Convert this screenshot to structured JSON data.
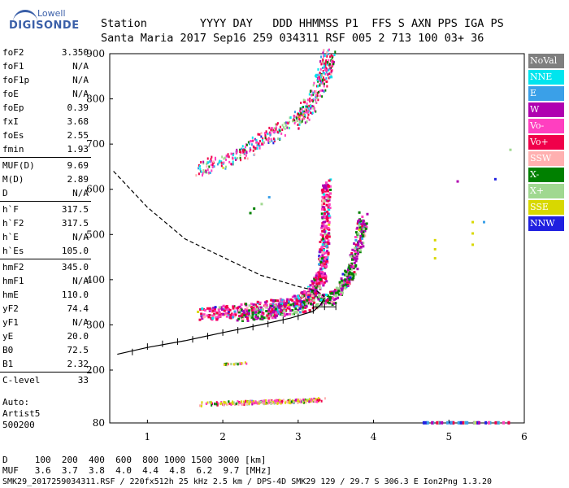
{
  "logo": {
    "line1": "Lowell",
    "line2": "DIGISONDE"
  },
  "header": {
    "labels": [
      "Station",
      "YYYY",
      "DAY",
      "DDD",
      "HHMMSS",
      "P1",
      "FFS",
      "S",
      "AXN",
      "PPS",
      "IGA",
      "PS"
    ],
    "values": [
      "Santa Maria",
      "2017",
      "Sep16",
      "259",
      "034311",
      "RSF",
      "005",
      "2",
      "713",
      "100",
      "03+",
      "36"
    ]
  },
  "params": [
    {
      "k": "foF2",
      "v": "3.350"
    },
    {
      "k": "foF1",
      "v": "N/A"
    },
    {
      "k": "foF1p",
      "v": "N/A"
    },
    {
      "k": "foE",
      "v": "N/A"
    },
    {
      "k": "foEp",
      "v": "0.39"
    },
    {
      "k": "fxI",
      "v": "3.68"
    },
    {
      "k": "foEs",
      "v": "2.55"
    },
    {
      "k": "fmin",
      "v": "1.93"
    },
    {
      "k": "MUF(D)",
      "v": "9.69"
    },
    {
      "k": "M(D)",
      "v": "2.89"
    },
    {
      "k": "D",
      "v": "N/A"
    },
    {
      "k": "h`F",
      "v": "317.5"
    },
    {
      "k": "h`F2",
      "v": "317.5"
    },
    {
      "k": "h`E",
      "v": "N/A"
    },
    {
      "k": "h`Es",
      "v": "105.0"
    },
    {
      "k": "hmF2",
      "v": "345.0"
    },
    {
      "k": "hmF1",
      "v": "N/A"
    },
    {
      "k": "hmE",
      "v": "110.0"
    },
    {
      "k": "yF2",
      "v": "74.4"
    },
    {
      "k": "yF1",
      "v": "N/A"
    },
    {
      "k": "yE",
      "v": "20.0"
    },
    {
      "k": "B0",
      "v": "72.5"
    },
    {
      "k": "B1",
      "v": "2.32"
    },
    {
      "k": "C-level",
      "v": "33"
    }
  ],
  "auto": {
    "line1": "Auto:",
    "line2": "Artist5",
    "line3": "500200"
  },
  "legend": [
    {
      "label": "NoVal",
      "color": "#7f7f7f"
    },
    {
      "label": "NNE",
      "color": "#00e5ee"
    },
    {
      "label": "E",
      "color": "#3aa0e8"
    },
    {
      "label": "W",
      "color": "#b000b0"
    },
    {
      "label": "Vo-",
      "color": "#ff3fc0"
    },
    {
      "label": "Vo+",
      "color": "#f0004a"
    },
    {
      "label": "SSW",
      "color": "#ffb0b0"
    },
    {
      "label": "X-",
      "color": "#008000"
    },
    {
      "label": "X+",
      "color": "#a0d890"
    },
    {
      "label": "SSE",
      "color": "#d8d800"
    },
    {
      "label": "NNW",
      "color": "#2020e0"
    }
  ],
  "bottom": {
    "line1": "D     100  200  400  600  800 1000 1500 3000 [km]",
    "line2": "MUF   3.6  3.7  3.8  4.0  4.4  4.8  6.2  9.7 [MHz]"
  },
  "footer": "SMK29_2017259034311.RSF / 220fx512h 25 kHz 2.5 km / DPS-4D SMK29 129 / 29.7 S 306.3 E Ion2Png 1.3.20",
  "chart_data": {
    "type": "scatter",
    "xlabel": "",
    "ylabel": "",
    "xlim": [
      0.5,
      6.0
    ],
    "ylim": [
      80,
      900
    ],
    "x_ticks": [
      1,
      2,
      3,
      4,
      5,
      6
    ],
    "y_ticks": [
      80,
      200,
      300,
      400,
      500,
      600,
      700,
      800,
      900
    ],
    "series": [
      {
        "name": "NNE",
        "color": "#00e5ee"
      },
      {
        "name": "E",
        "color": "#3aa0e8"
      },
      {
        "name": "W",
        "color": "#b000b0"
      },
      {
        "name": "Vo-",
        "color": "#ff3fc0"
      },
      {
        "name": "Vo+",
        "color": "#f0004a"
      },
      {
        "name": "SSW",
        "color": "#ffb0b0"
      },
      {
        "name": "X-",
        "color": "#008000"
      },
      {
        "name": "X+",
        "color": "#a0d890"
      },
      {
        "name": "SSE",
        "color": "#d8d800"
      },
      {
        "name": "NNW",
        "color": "#2020e0"
      }
    ],
    "trace_F2_o": [
      [
        1.7,
        325
      ],
      [
        2.0,
        330
      ],
      [
        2.5,
        340
      ],
      [
        2.9,
        350
      ],
      [
        3.1,
        362
      ],
      [
        3.2,
        380
      ],
      [
        3.3,
        410
      ],
      [
        3.33,
        460
      ],
      [
        3.35,
        540
      ],
      [
        3.36,
        620
      ]
    ],
    "trace_F2_x": [
      [
        2.2,
        322
      ],
      [
        2.6,
        330
      ],
      [
        3.0,
        342
      ],
      [
        3.4,
        360
      ],
      [
        3.6,
        390
      ],
      [
        3.7,
        430
      ],
      [
        3.8,
        490
      ],
      [
        3.85,
        540
      ]
    ],
    "trace_multi": [
      [
        1.7,
        645
      ],
      [
        2.2,
        680
      ],
      [
        2.6,
        720
      ],
      [
        3.0,
        760
      ],
      [
        3.2,
        800
      ],
      [
        3.35,
        860
      ],
      [
        3.4,
        900
      ]
    ],
    "trace_Es": [
      [
        1.7,
        125
      ],
      [
        2.2,
        128
      ],
      [
        2.6,
        130
      ],
      [
        3.0,
        132
      ],
      [
        3.3,
        135
      ]
    ],
    "trace_Es2": [
      [
        2.0,
        215
      ],
      [
        2.3,
        218
      ]
    ],
    "profile_lower": [
      [
        0.6,
        235
      ],
      [
        1.0,
        250
      ],
      [
        1.5,
        265
      ],
      [
        2.0,
        283
      ],
      [
        2.5,
        300
      ],
      [
        2.9,
        315
      ],
      [
        3.2,
        330
      ],
      [
        3.3,
        345
      ],
      [
        3.35,
        360
      ]
    ],
    "profile_upper": [
      [
        0.55,
        640
      ],
      [
        1.0,
        560
      ],
      [
        1.5,
        490
      ],
      [
        2.0,
        450
      ],
      [
        2.5,
        410
      ],
      [
        3.0,
        385
      ],
      [
        3.25,
        375
      ],
      [
        3.35,
        362
      ]
    ],
    "x_ticks_bars_lower": [
      [
        0.8,
        240
      ],
      [
        1.0,
        252
      ],
      [
        1.2,
        258
      ],
      [
        1.4,
        263
      ],
      [
        1.6,
        268
      ],
      [
        1.8,
        275
      ],
      [
        2.0,
        283
      ],
      [
        2.2,
        288
      ],
      [
        2.4,
        295
      ],
      [
        2.6,
        302
      ],
      [
        2.8,
        310
      ],
      [
        3.0,
        318
      ],
      [
        3.2,
        332
      ],
      [
        3.35,
        340
      ]
    ]
  }
}
